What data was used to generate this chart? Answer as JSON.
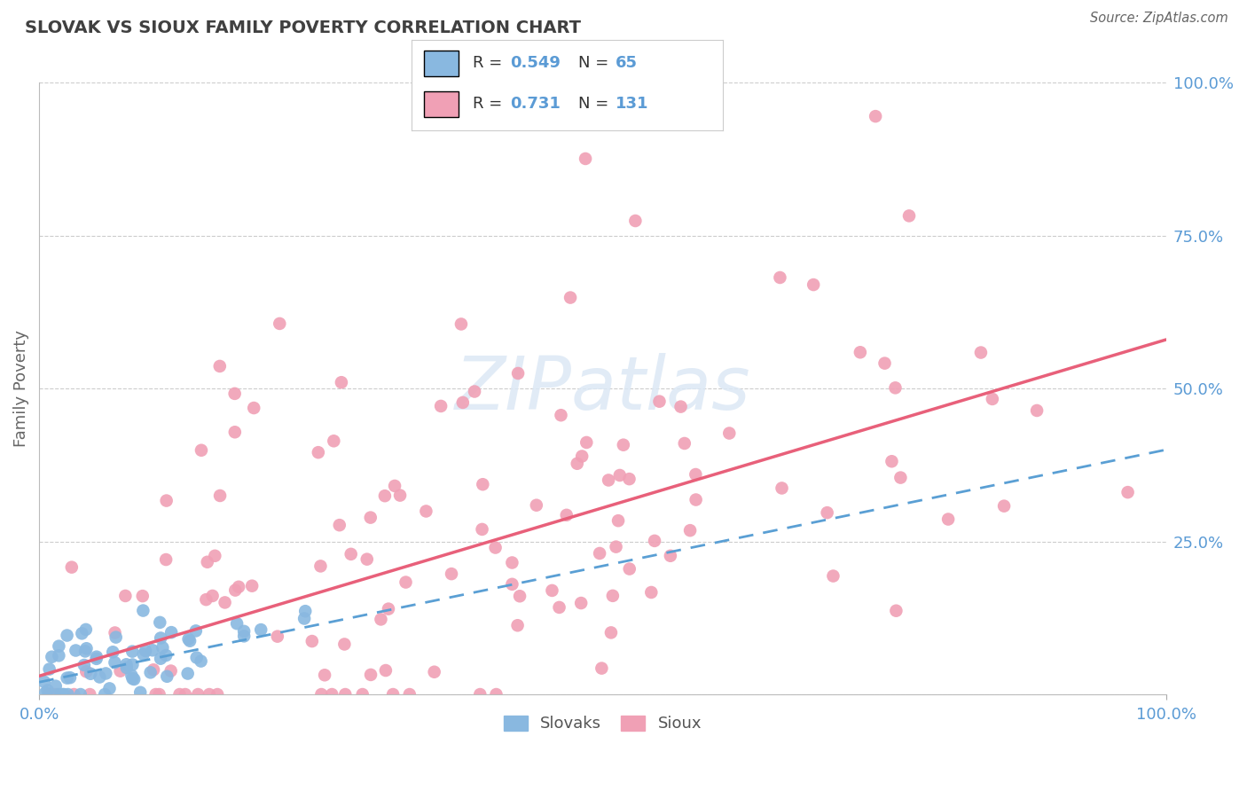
{
  "title": "SLOVAK VS SIOUX FAMILY POVERTY CORRELATION CHART",
  "source": "Source: ZipAtlas.com",
  "ylabel": "Family Poverty",
  "xlim": [
    0,
    1
  ],
  "ylim": [
    0,
    1
  ],
  "ytick_positions": [
    0.0,
    0.25,
    0.5,
    0.75,
    1.0
  ],
  "ytick_labels": [
    "",
    "25.0%",
    "50.0%",
    "75.0%",
    "100.0%"
  ],
  "xtick_positions": [
    0.0,
    1.0
  ],
  "xtick_labels": [
    "0.0%",
    "100.0%"
  ],
  "slovak_color": "#89b8e0",
  "sioux_color": "#f0a0b5",
  "slovak_line_color": "#5a9fd4",
  "sioux_line_color": "#e8607a",
  "slovak_R": 0.549,
  "slovak_N": 65,
  "sioux_R": 0.731,
  "sioux_N": 131,
  "background_color": "#ffffff",
  "grid_color": "#cccccc",
  "title_color": "#404040",
  "axis_label_color": "#5b9bd5",
  "legend_color": "#5b9bd5",
  "watermark_color": "#dce8f5",
  "sk_line_x0": 0.0,
  "sk_line_y0": 0.02,
  "sk_line_x1": 1.0,
  "sk_line_y1": 0.4,
  "si_line_x0": 0.0,
  "si_line_y0": 0.03,
  "si_line_x1": 1.0,
  "si_line_y1": 0.58
}
